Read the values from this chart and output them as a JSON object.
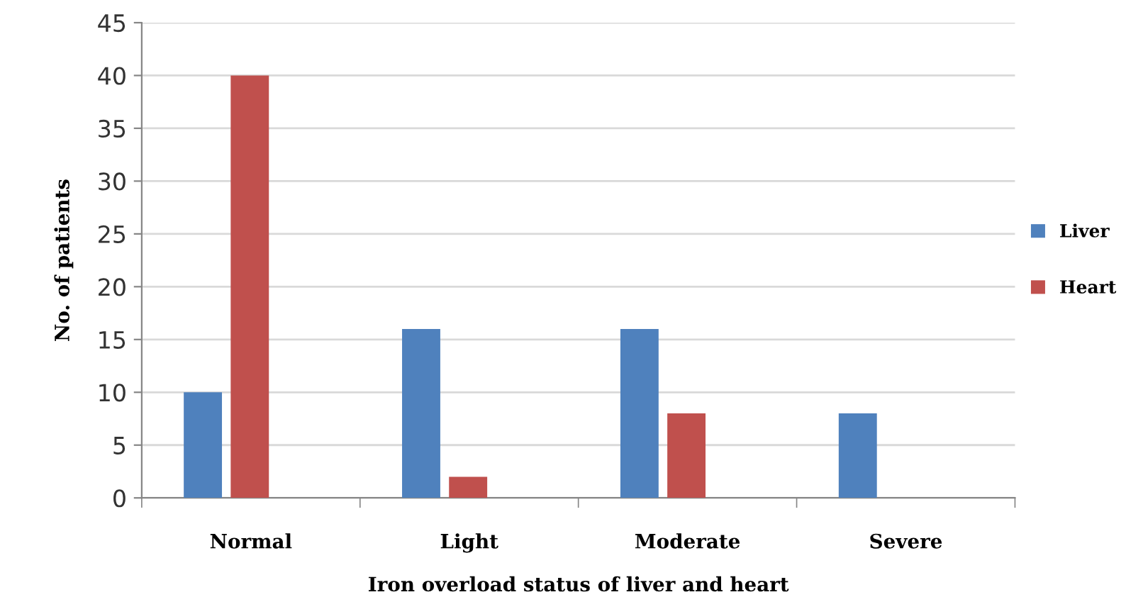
{
  "chart_data": {
    "type": "bar",
    "xlabel": "Iron overload status of liver and heart",
    "ylabel": "No. of patients",
    "categories": [
      "Normal",
      "Light",
      "Moderate",
      "Severe"
    ],
    "series": [
      {
        "name": "Liver",
        "color": "#4f81bd",
        "values": [
          10,
          16,
          16,
          8
        ]
      },
      {
        "name": "Heart",
        "color": "#c0504d",
        "values": [
          40,
          2,
          8,
          0
        ]
      }
    ],
    "ylim": [
      0,
      45
    ],
    "yticks": [
      0,
      5,
      10,
      15,
      20,
      25,
      30,
      35,
      40,
      45
    ],
    "grid": "y",
    "legend": "right"
  }
}
